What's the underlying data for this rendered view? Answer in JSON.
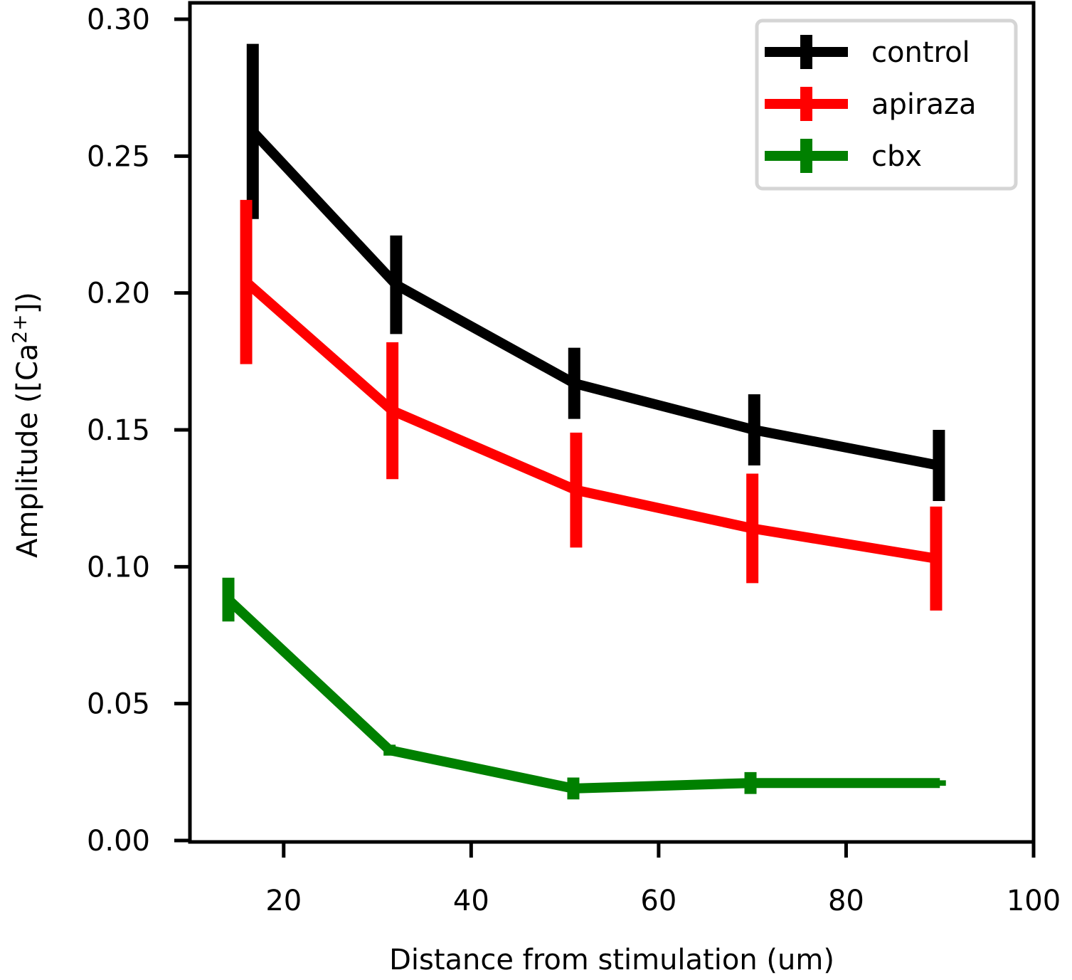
{
  "chart_data": {
    "type": "line",
    "xlabel": "Distance from stimulation (um)",
    "ylabel": "Amplitude ([Ca$^{2+}$])",
    "ylabel_parts": {
      "prefix": "Amplitude ([Ca",
      "sup": "2+",
      "suffix": "])"
    },
    "xlim": [
      10,
      100
    ],
    "ylim": [
      0,
      0.305
    ],
    "xticks": [
      20,
      40,
      60,
      80,
      100
    ],
    "xtick_labels": [
      "20",
      "40",
      "60",
      "80",
      "100"
    ],
    "yticks": [
      0.0,
      0.05,
      0.1,
      0.15,
      0.2,
      0.25,
      0.3
    ],
    "ytick_labels": [
      "0.00",
      "0.05",
      "0.10",
      "0.15",
      "0.20",
      "0.25",
      "0.30"
    ],
    "grid": false,
    "legend_position": "top-right",
    "series": [
      {
        "name": "control",
        "color": "#000000",
        "x": [
          16.7,
          32.0,
          51.0,
          70.2,
          89.9
        ],
        "y": [
          0.259,
          0.203,
          0.167,
          0.15,
          0.137
        ],
        "yerr": [
          0.032,
          0.018,
          0.013,
          0.013,
          0.013
        ]
      },
      {
        "name": "apiraza",
        "color": "#ff0000",
        "x": [
          16.0,
          31.6,
          51.2,
          70.0,
          89.6
        ],
        "y": [
          0.204,
          0.157,
          0.128,
          0.114,
          0.103
        ],
        "yerr": [
          0.03,
          0.025,
          0.021,
          0.02,
          0.019
        ]
      },
      {
        "name": "cbx",
        "color": "#008000",
        "x": [
          14.1,
          31.3,
          50.9,
          69.8,
          90.0
        ],
        "y": [
          0.088,
          0.033,
          0.019,
          0.021,
          0.021
        ],
        "yerr": [
          0.008,
          0.002,
          0.004,
          0.004,
          0.001
        ]
      }
    ]
  }
}
